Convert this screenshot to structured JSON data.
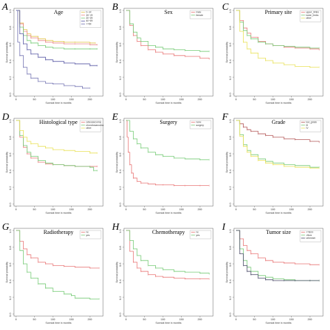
{
  "chart_data": [
    {
      "panel": "A",
      "title": "Age",
      "type": "line",
      "xlabel": "Survival time in months",
      "ylabel": "Survival probability",
      "xlim": [
        0,
        230
      ],
      "ylim": [
        0,
        1
      ],
      "xticks": [
        "0",
        "50",
        "100",
        "150",
        "200"
      ],
      "yticks": [
        "0.0",
        "0.2",
        "0.4",
        "0.6",
        "0.8",
        "1.0"
      ],
      "legend_position": "top-right",
      "series": [
        {
          "name": "0~14",
          "color": "#e0c040",
          "x": [
            0,
            10,
            20,
            30,
            40,
            60,
            80,
            100,
            130,
            160,
            200,
            215
          ],
          "y": [
            1,
            0.85,
            0.77,
            0.72,
            0.69,
            0.66,
            0.64,
            0.63,
            0.62,
            0.62,
            0.61,
            0.61
          ]
        },
        {
          "name": "15~19",
          "color": "#e88080",
          "x": [
            0,
            10,
            20,
            30,
            40,
            60,
            80,
            100,
            130,
            160,
            200,
            220
          ],
          "y": [
            1,
            0.84,
            0.75,
            0.7,
            0.67,
            0.64,
            0.62,
            0.61,
            0.6,
            0.6,
            0.59,
            0.59
          ]
        },
        {
          "name": "20~39",
          "color": "#6fc86f",
          "x": [
            0,
            10,
            20,
            30,
            40,
            60,
            80,
            100,
            130,
            160,
            200,
            220
          ],
          "y": [
            1,
            0.8,
            0.7,
            0.64,
            0.61,
            0.58,
            0.56,
            0.55,
            0.54,
            0.54,
            0.54,
            0.54
          ]
        },
        {
          "name": "40~59",
          "color": "#5050a0",
          "x": [
            0,
            10,
            20,
            30,
            40,
            60,
            80,
            100,
            130,
            160,
            200,
            220
          ],
          "y": [
            1,
            0.72,
            0.6,
            0.53,
            0.48,
            0.44,
            0.41,
            0.39,
            0.37,
            0.36,
            0.34,
            0.34
          ]
        },
        {
          "name": ">=60",
          "color": "#7070b0",
          "x": [
            0,
            5,
            10,
            20,
            30,
            40,
            60,
            80,
            100,
            130,
            160,
            180,
            200
          ],
          "y": [
            1,
            0.62,
            0.46,
            0.32,
            0.24,
            0.19,
            0.15,
            0.13,
            0.12,
            0.1,
            0.09,
            0.07,
            0.07
          ]
        }
      ]
    },
    {
      "panel": "B",
      "title": "Sex",
      "type": "line",
      "xlabel": "Survival time in months",
      "ylabel": "Survival probability",
      "xlim": [
        0,
        230
      ],
      "ylim": [
        0,
        1
      ],
      "xticks": [
        "0",
        "50",
        "100",
        "150",
        "200"
      ],
      "yticks": [
        "0.0",
        "0.2",
        "0.4",
        "0.6",
        "0.8",
        "1.0"
      ],
      "legend_position": "top-right",
      "series": [
        {
          "name": "male",
          "color": "#e87070",
          "x": [
            0,
            10,
            20,
            30,
            40,
            60,
            80,
            100,
            130,
            160,
            200,
            225
          ],
          "y": [
            1,
            0.82,
            0.7,
            0.63,
            0.58,
            0.53,
            0.5,
            0.48,
            0.46,
            0.45,
            0.43,
            0.42
          ]
        },
        {
          "name": "female",
          "color": "#6fc86f",
          "x": [
            0,
            10,
            20,
            30,
            40,
            60,
            80,
            100,
            130,
            160,
            200,
            225
          ],
          "y": [
            1,
            0.84,
            0.74,
            0.67,
            0.63,
            0.58,
            0.56,
            0.54,
            0.53,
            0.52,
            0.51,
            0.51
          ]
        }
      ]
    },
    {
      "panel": "C",
      "title": "Primary site",
      "type": "line",
      "xlabel": "Survival time in months",
      "ylabel": "Survival probability",
      "xlim": [
        0,
        230
      ],
      "ylim": [
        0,
        1
      ],
      "xticks": [
        "0",
        "50",
        "100",
        "150",
        "200"
      ],
      "yticks": [
        "0.0",
        "0.2",
        "0.4",
        "0.6",
        "0.8",
        "1.0"
      ],
      "legend_position": "top-right",
      "series": [
        {
          "name": "upper_limbs",
          "color": "#e87070",
          "x": [
            0,
            10,
            20,
            30,
            40,
            60,
            80,
            100,
            130,
            160,
            200,
            225
          ],
          "y": [
            1,
            0.88,
            0.79,
            0.73,
            0.68,
            0.63,
            0.6,
            0.58,
            0.56,
            0.55,
            0.54,
            0.53
          ]
        },
        {
          "name": "lower_limbs",
          "color": "#6fc86f",
          "x": [
            0,
            10,
            20,
            30,
            40,
            60,
            80,
            100,
            130,
            160,
            200,
            225
          ],
          "y": [
            1,
            0.86,
            0.76,
            0.7,
            0.66,
            0.62,
            0.6,
            0.58,
            0.57,
            0.56,
            0.55,
            0.55
          ]
        },
        {
          "name": "other",
          "color": "#e8e050",
          "x": [
            0,
            10,
            20,
            30,
            40,
            60,
            80,
            100,
            130,
            160,
            200,
            225
          ],
          "y": [
            1,
            0.75,
            0.62,
            0.54,
            0.49,
            0.43,
            0.4,
            0.37,
            0.35,
            0.33,
            0.32,
            0.32
          ]
        }
      ]
    },
    {
      "panel": "D",
      "title": "Histological type",
      "type": "line",
      "xlabel": "Survival time in months",
      "ylabel": "Survival probability",
      "xlim": [
        0,
        230
      ],
      "ylim": [
        0,
        1
      ],
      "xticks": [
        "0",
        "50",
        "100",
        "150",
        "200"
      ],
      "yticks": [
        "0.0",
        "0.2",
        "0.4",
        "0.6",
        "0.8",
        "1.0"
      ],
      "legend_position": "top-right",
      "series": [
        {
          "name": "osteosarcoma",
          "color": "#e87070",
          "x": [
            0,
            10,
            20,
            30,
            40,
            60,
            80,
            100,
            130,
            160,
            200,
            220
          ],
          "y": [
            1,
            0.8,
            0.68,
            0.6,
            0.55,
            0.5,
            0.48,
            0.47,
            0.46,
            0.45,
            0.45,
            0.45
          ]
        },
        {
          "name": "chondrosarcoma",
          "color": "#6fc86f",
          "x": [
            0,
            10,
            20,
            30,
            40,
            60,
            80,
            100,
            130,
            160,
            200,
            210,
            220
          ],
          "y": [
            1,
            0.82,
            0.7,
            0.62,
            0.57,
            0.52,
            0.49,
            0.47,
            0.46,
            0.45,
            0.44,
            0.4,
            0.4
          ]
        },
        {
          "name": "other",
          "color": "#e8e050",
          "x": [
            0,
            10,
            20,
            30,
            40,
            60,
            80,
            100,
            130,
            160,
            200,
            220
          ],
          "y": [
            1,
            0.88,
            0.8,
            0.75,
            0.72,
            0.69,
            0.67,
            0.65,
            0.64,
            0.63,
            0.61,
            0.61
          ]
        }
      ]
    },
    {
      "panel": "E",
      "title": "Surgery",
      "type": "line",
      "xlabel": "Survival time in months",
      "ylabel": "Survival probability",
      "xlim": [
        0,
        230
      ],
      "ylim": [
        0,
        1
      ],
      "xticks": [
        "0",
        "50",
        "100",
        "150",
        "200"
      ],
      "yticks": [
        "0.0",
        "0.2",
        "0.4",
        "0.6",
        "0.8",
        "1.0"
      ],
      "legend_position": "top-right",
      "series": [
        {
          "name": "none",
          "color": "#e87070",
          "x": [
            0,
            3,
            6,
            10,
            15,
            20,
            30,
            40,
            60,
            80,
            100,
            130,
            160,
            200,
            225
          ],
          "y": [
            1,
            0.8,
            0.62,
            0.47,
            0.37,
            0.31,
            0.27,
            0.25,
            0.24,
            0.23,
            0.23,
            0.22,
            0.22,
            0.22,
            0.22
          ]
        },
        {
          "name": "surgery",
          "color": "#6fc86f",
          "x": [
            0,
            10,
            20,
            30,
            40,
            60,
            80,
            100,
            130,
            160,
            200,
            225
          ],
          "y": [
            1,
            0.87,
            0.78,
            0.72,
            0.67,
            0.62,
            0.59,
            0.57,
            0.55,
            0.54,
            0.53,
            0.53
          ]
        }
      ]
    },
    {
      "panel": "F",
      "title": "Grade",
      "type": "line",
      "xlabel": "Survival time in months",
      "ylabel": "Survival probability",
      "xlim": [
        0,
        230
      ],
      "ylim": [
        0,
        1
      ],
      "xticks": [
        "0",
        "50",
        "100",
        "150",
        "200"
      ],
      "yticks": [
        "0.0",
        "0.2",
        "0.4",
        "0.6",
        "0.8",
        "1.0"
      ],
      "legend_position": "top-right",
      "series": [
        {
          "name": "low_grade",
          "color": "#b05050",
          "x": [
            0,
            10,
            20,
            30,
            40,
            60,
            80,
            100,
            130,
            160,
            200,
            225
          ],
          "y": [
            1,
            0.96,
            0.92,
            0.89,
            0.87,
            0.84,
            0.82,
            0.8,
            0.78,
            0.77,
            0.75,
            0.74
          ]
        },
        {
          "name": "III",
          "color": "#6fc86f",
          "x": [
            0,
            10,
            20,
            30,
            40,
            60,
            80,
            100,
            130,
            160,
            200,
            225
          ],
          "y": [
            1,
            0.83,
            0.71,
            0.64,
            0.59,
            0.54,
            0.51,
            0.49,
            0.47,
            0.46,
            0.44,
            0.44
          ]
        },
        {
          "name": "IV",
          "color": "#e8e050",
          "x": [
            0,
            10,
            20,
            30,
            40,
            60,
            80,
            100,
            130,
            160,
            200,
            225
          ],
          "y": [
            1,
            0.81,
            0.69,
            0.62,
            0.57,
            0.52,
            0.49,
            0.47,
            0.45,
            0.44,
            0.43,
            0.43
          ]
        }
      ]
    },
    {
      "panel": "G",
      "title": "Radiotherapy",
      "type": "line",
      "xlabel": "Survival time in months",
      "ylabel": "Survival probability",
      "xlim": [
        0,
        230
      ],
      "ylim": [
        0,
        1
      ],
      "xticks": [
        "0",
        "50",
        "100",
        "150",
        "200"
      ],
      "yticks": [
        "0.0",
        "0.2",
        "0.4",
        "0.6",
        "0.8",
        "1.0"
      ],
      "legend_position": "top-right",
      "series": [
        {
          "name": "no",
          "color": "#e87070",
          "x": [
            0,
            10,
            20,
            30,
            40,
            60,
            80,
            100,
            130,
            160,
            200,
            225
          ],
          "y": [
            1,
            0.87,
            0.78,
            0.71,
            0.67,
            0.62,
            0.6,
            0.58,
            0.57,
            0.56,
            0.55,
            0.55
          ]
        },
        {
          "name": "yes",
          "color": "#6fc86f",
          "x": [
            0,
            10,
            20,
            30,
            40,
            60,
            80,
            100,
            130,
            150,
            160,
            200,
            225
          ],
          "y": [
            1,
            0.76,
            0.6,
            0.5,
            0.43,
            0.36,
            0.31,
            0.27,
            0.24,
            0.22,
            0.19,
            0.18,
            0.18
          ]
        }
      ]
    },
    {
      "panel": "H",
      "title": "Chemotherapy",
      "type": "line",
      "xlabel": "Survival time in months",
      "ylabel": "Survival probability",
      "xlim": [
        0,
        230
      ],
      "ylim": [
        0,
        1
      ],
      "xticks": [
        "0",
        "50",
        "100",
        "150",
        "200"
      ],
      "yticks": [
        "0.0",
        "0.2",
        "0.4",
        "0.6",
        "0.8",
        "1.0"
      ],
      "legend_position": "top-right",
      "series": [
        {
          "name": "no",
          "color": "#e87070",
          "x": [
            0,
            10,
            20,
            30,
            40,
            60,
            80,
            100,
            130,
            160,
            200,
            225
          ],
          "y": [
            1,
            0.75,
            0.62,
            0.55,
            0.51,
            0.47,
            0.45,
            0.44,
            0.43,
            0.42,
            0.42,
            0.42
          ]
        },
        {
          "name": "yes",
          "color": "#6fc86f",
          "x": [
            0,
            10,
            20,
            30,
            40,
            60,
            80,
            100,
            130,
            160,
            200,
            225
          ],
          "y": [
            1,
            0.88,
            0.78,
            0.7,
            0.64,
            0.58,
            0.55,
            0.53,
            0.51,
            0.5,
            0.49,
            0.48
          ]
        }
      ]
    },
    {
      "panel": "I",
      "title": "Tumor size",
      "type": "line",
      "xlabel": "Survival time in months",
      "ylabel": "Survival probability",
      "xlim": [
        0,
        230
      ],
      "ylim": [
        0,
        1
      ],
      "xticks": [
        "0",
        "50",
        "100",
        "150",
        "200"
      ],
      "yticks": [
        "0.0",
        "0.2",
        "0.4",
        "0.6",
        "0.8",
        "1.0"
      ],
      "legend_position": "top-right",
      "series": [
        {
          "name": "<=8cm",
          "color": "#e87070",
          "x": [
            0,
            10,
            20,
            30,
            40,
            60,
            80,
            100,
            130,
            160,
            200,
            225
          ],
          "y": [
            1,
            0.9,
            0.82,
            0.76,
            0.72,
            0.67,
            0.64,
            0.62,
            0.61,
            0.6,
            0.59,
            0.59
          ]
        },
        {
          "name": ">8cm",
          "color": "#6fc86f",
          "x": [
            0,
            10,
            20,
            30,
            40,
            60,
            80,
            100,
            130,
            160,
            200,
            225
          ],
          "y": [
            1,
            0.78,
            0.64,
            0.56,
            0.51,
            0.46,
            0.44,
            0.42,
            0.41,
            0.4,
            0.4,
            0.4
          ]
        },
        {
          "name": "unknown",
          "color": "#404060",
          "x": [
            0,
            10,
            20,
            30,
            40,
            60,
            80,
            100,
            130,
            160,
            200,
            225
          ],
          "y": [
            1,
            0.72,
            0.58,
            0.51,
            0.47,
            0.43,
            0.41,
            0.4,
            0.4,
            0.4,
            0.4,
            0.4
          ]
        }
      ]
    }
  ]
}
